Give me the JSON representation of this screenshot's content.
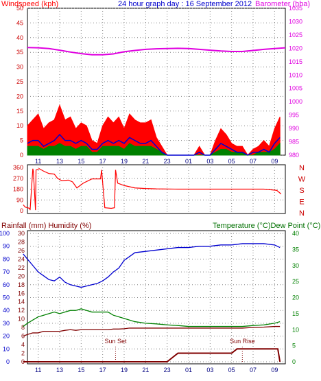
{
  "chart_data": [
    {
      "type": "line",
      "title": "24 hour graph day : 16 September 2012",
      "left_axis_label": "Windspeed (kph)",
      "right_axis_label": "Barometer (hba)",
      "x_tick_labels": [
        "11",
        "13",
        "15",
        "17",
        "19",
        "21",
        "23",
        "01",
        "03",
        "05",
        "07",
        "09"
      ],
      "left_ticks": [
        "0",
        "5",
        "10",
        "15",
        "20",
        "25",
        "30",
        "35",
        "40",
        "45",
        "50"
      ],
      "right_ticks": [
        "980",
        "985",
        "990",
        "995",
        "1000",
        "1005",
        "1010",
        "1015",
        "1020",
        "1025",
        "1030",
        "1035"
      ],
      "ylim_left": [
        0,
        50
      ],
      "ylim_right": [
        980,
        1035
      ],
      "grid": true,
      "series": [
        {
          "color": "#e000e0",
          "axis": "right",
          "x": [
            10,
            11,
            12,
            13,
            14,
            15,
            16,
            17,
            18,
            19,
            20,
            21,
            22,
            23,
            24,
            25,
            26,
            27,
            28,
            29,
            30,
            31,
            32,
            33,
            34
          ],
          "values": [
            1020.3,
            1020.2,
            1019.9,
            1019.3,
            1018.6,
            1018.0,
            1017.6,
            1017.6,
            1017.9,
            1018.7,
            1019.2,
            1019.6,
            1019.8,
            1019.9,
            1020.0,
            1019.9,
            1019.6,
            1019.3,
            1019.0,
            1018.8,
            1018.8,
            1019.2,
            1019.6,
            1019.9,
            1020.2
          ]
        }
      ],
      "windspeed_series": {
        "gust_color": "#ff0000",
        "avg_color": "#0000d0",
        "hourly_color": "#008000",
        "x": [
          10,
          10.5,
          11,
          11.5,
          12,
          12.5,
          13,
          13.5,
          14,
          14.5,
          15,
          15.5,
          16,
          16.5,
          17,
          17.5,
          18,
          18.5,
          19,
          19.5,
          20,
          20.5,
          21,
          21.5,
          22,
          22.5,
          23,
          23.5,
          24,
          24.5,
          25,
          25.5,
          26,
          26.5,
          27,
          27.5,
          28,
          28.5,
          29,
          29.5,
          30,
          30.5,
          31,
          31.5,
          32,
          32.5,
          33,
          33.5
        ],
        "gust": [
          10,
          12,
          14,
          9,
          11,
          12,
          17,
          12,
          13,
          9,
          11,
          10,
          5,
          4,
          10,
          13,
          11,
          13,
          9,
          14,
          12,
          11,
          11,
          12,
          6,
          3,
          0,
          0,
          0,
          0,
          0,
          0,
          3,
          0,
          0,
          5,
          9,
          7,
          4,
          3,
          3,
          0,
          2,
          3,
          5,
          3,
          9,
          13
        ],
        "average": [
          4,
          5,
          5,
          3,
          4,
          5,
          7,
          5,
          5,
          4,
          5,
          4,
          2,
          2,
          4,
          5,
          4,
          5,
          4,
          6,
          5,
          4,
          4,
          5,
          3,
          1,
          0,
          0,
          0,
          0,
          0,
          0,
          1,
          0,
          0,
          2,
          4,
          3,
          2,
          1,
          1,
          0,
          1,
          1,
          2,
          1,
          4,
          6
        ],
        "hourly": [
          3,
          3,
          3,
          2,
          3,
          3,
          4,
          3,
          3,
          2,
          3,
          3,
          1,
          1,
          3,
          3,
          3,
          3,
          2,
          4,
          3,
          3,
          3,
          3,
          2,
          1,
          0,
          0,
          0,
          0,
          0,
          0,
          0,
          0,
          0,
          1,
          2,
          2,
          1,
          1,
          1,
          0,
          0,
          1,
          1,
          1,
          2,
          4
        ]
      }
    },
    {
      "type": "line",
      "title": "",
      "left_ticks": [
        "0",
        "90",
        "180",
        "270",
        "360"
      ],
      "right_labels": [
        "N",
        "W",
        "S",
        "E",
        "N"
      ],
      "x_tick_labels": [],
      "ylim": [
        0,
        360
      ],
      "series": [
        {
          "color": "#ff0000",
          "x": [
            9.6,
            9.8,
            10.2,
            10.25,
            10.5,
            10.55,
            10.75,
            10.8,
            11.1,
            11.5,
            12,
            12.5,
            12.8,
            13.2,
            13.8,
            14.2,
            14.6,
            15.2,
            16,
            16.8,
            16.9,
            17.2,
            17.8,
            18.1,
            18.2,
            18.4,
            19,
            20,
            21,
            22,
            24,
            26,
            28,
            30,
            32,
            33.2,
            33.6
          ],
          "values": [
            50,
            30,
            20,
            5,
            350,
            330,
            5,
            340,
            350,
            330,
            310,
            305,
            270,
            250,
            255,
            240,
            190,
            230,
            265,
            265,
            340,
            25,
            20,
            25,
            340,
            230,
            210,
            190,
            185,
            182,
            180,
            180,
            180,
            180,
            180,
            170,
            140
          ]
        }
      ]
    },
    {
      "type": "line",
      "title": "",
      "left_axis_label": "Rainfall (mm)  Humidity (%)",
      "right_axis_label": "Temperature (°C)Dew Point (°C)",
      "humidity_ticks": [
        "0",
        "10",
        "20",
        "30",
        "40",
        "50",
        "60",
        "70",
        "80",
        "90",
        "100"
      ],
      "rain_ticks": [
        "0",
        "2",
        "4",
        "6",
        "8",
        "10",
        "12",
        "14",
        "16",
        "18",
        "20",
        "22",
        "24",
        "26",
        "28",
        "30"
      ],
      "temp_ticks": [
        "0",
        "5",
        "10",
        "15",
        "20",
        "25",
        "30",
        "35",
        "40"
      ],
      "x_tick_labels": [
        "11",
        "13",
        "15",
        "17",
        "19",
        "21",
        "23",
        "01",
        "03",
        "05",
        "07",
        "09"
      ],
      "annotations": [
        {
          "text": "Sun Set",
          "x": 18.2
        },
        {
          "text": "Sun Rise",
          "x": 30.0
        }
      ],
      "series": [
        {
          "color": "#0000d0",
          "axis": "humidity",
          "x": [
            9.6,
            10,
            10.5,
            11,
            11.5,
            12,
            12.5,
            13,
            13.5,
            14,
            14.5,
            15,
            15.5,
            16,
            16.5,
            17,
            17.5,
            18,
            18.5,
            19,
            19.5,
            20,
            21,
            22,
            23,
            24,
            25,
            26,
            27,
            28,
            29,
            30,
            31,
            32,
            33,
            33.5
          ],
          "values": [
            84,
            80,
            75,
            70,
            67,
            64,
            63,
            66,
            62,
            60,
            59,
            58,
            59,
            60,
            61,
            63,
            66,
            70,
            73,
            79,
            82,
            85,
            86,
            87,
            88,
            89,
            89,
            90,
            90,
            91,
            91,
            92,
            92,
            92,
            91,
            89
          ]
        },
        {
          "color": "#008000",
          "axis": "temp",
          "x": [
            9.6,
            10,
            10.5,
            11,
            11.5,
            12,
            12.5,
            13,
            13.5,
            14,
            14.5,
            15,
            15.5,
            16,
            16.5,
            17,
            17.5,
            18,
            18.5,
            19,
            19.5,
            20,
            21,
            22,
            23,
            24,
            25,
            26,
            27,
            28,
            29,
            30,
            31,
            32,
            33,
            33.5
          ],
          "values": [
            11,
            12,
            13,
            14,
            14.5,
            15,
            15.5,
            15,
            15.5,
            16,
            16,
            16.5,
            16,
            15.5,
            15.5,
            15.5,
            15.5,
            14.5,
            14,
            13.5,
            13,
            12.5,
            12,
            11.8,
            11.5,
            11.3,
            11,
            11,
            11,
            11,
            11,
            11,
            11.3,
            11.5,
            12,
            12.5
          ]
        },
        {
          "color": "#800000",
          "axis": "temp",
          "x": [
            9.6,
            10,
            10.5,
            11,
            11.5,
            12,
            12.5,
            13,
            13.5,
            14,
            14.5,
            15,
            15.5,
            16,
            16.5,
            17,
            17.5,
            18,
            18.5,
            19,
            19.5,
            20,
            21,
            22,
            23,
            24,
            25,
            26,
            27,
            28,
            29,
            30,
            31,
            32,
            33,
            33.5
          ],
          "values": [
            8,
            8.5,
            9,
            9,
            9.5,
            9.5,
            9.5,
            9.5,
            9.8,
            10,
            9.8,
            10,
            10,
            10,
            10,
            10,
            10,
            10.2,
            10.2,
            10.3,
            10.5,
            10.5,
            10.5,
            10.5,
            10.5,
            10.5,
            10.5,
            10.5,
            10.5,
            10.5,
            10.5,
            10.5,
            10.7,
            10.8,
            11,
            11
          ]
        },
        {
          "color": "#800000",
          "axis": "rain",
          "x": [
            9.6,
            20,
            22,
            23,
            23.5,
            24,
            26,
            28,
            29,
            29.5,
            30,
            32,
            33,
            33.3,
            33.5
          ],
          "values": [
            0,
            0,
            0,
            0,
            1,
            2,
            2,
            2,
            2,
            3,
            3,
            3,
            3,
            3,
            0
          ]
        }
      ]
    }
  ]
}
